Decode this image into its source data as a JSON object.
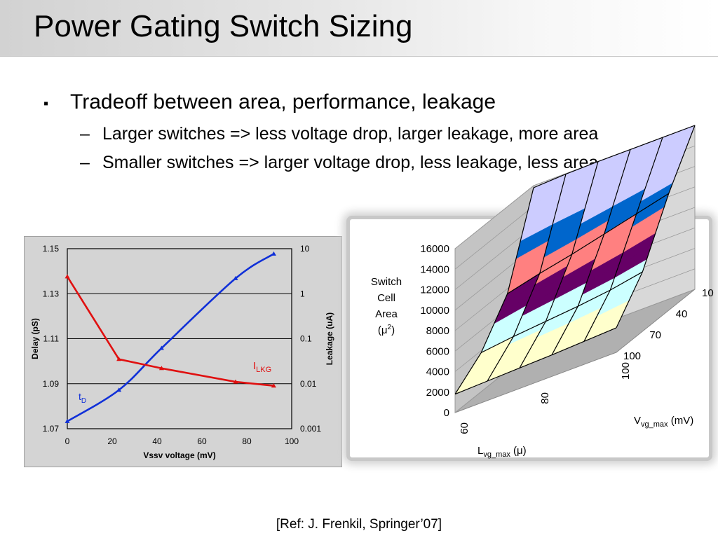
{
  "slide": {
    "title": "Power Gating Switch Sizing",
    "bullet_marker": "▪",
    "bullet": "Tradeoff between area, performance, leakage",
    "dash": "–",
    "sub_bullets": [
      "Larger switches => less voltage drop, larger leakage, more area",
      "Smaller switches => larger voltage drop, less leakage, less area"
    ],
    "reference": "[Ref: J. Frenkil, Springer’07]"
  },
  "chart_data": [
    {
      "type": "line",
      "xlabel": "Vssv voltage (mV)",
      "ylabel": "Delay (pS)",
      "y2label": "Leakage (uA)",
      "xlim": [
        0,
        100
      ],
      "xticks": [
        "0",
        "20",
        "40",
        "60",
        "80",
        "100"
      ],
      "ylim": [
        1.07,
        1.15
      ],
      "yticks": [
        "1.07",
        "1.09",
        "1.11",
        "1.13",
        "1.15"
      ],
      "y2lim": [
        0.001,
        10
      ],
      "y2scale": "log",
      "y2ticks": [
        "0.001",
        "0.01",
        "0.1",
        "1",
        "10"
      ],
      "grid": true,
      "series": [
        {
          "name": "tD",
          "label_main": "t",
          "label_sub": "D",
          "axis": "left",
          "color": "#1030d8",
          "x": [
            0,
            23,
            42,
            75,
            92
          ],
          "y": [
            1.0733,
            1.0872,
            1.1058,
            1.1368,
            1.1477
          ]
        },
        {
          "name": "ILKG",
          "label_main": "I",
          "label_sub": "LKG",
          "axis": "right",
          "color": "#e01010",
          "x": [
            0,
            23,
            42,
            75,
            92
          ],
          "y": [
            2.4,
            0.035,
            0.022,
            0.011,
            0.009
          ]
        }
      ]
    },
    {
      "type": "surface",
      "zlabel_lines": [
        "Switch",
        "Cell",
        "Area",
        "(μ"
      ],
      "zlabel_sup": "2",
      "zlabel_end": ")",
      "xlabel": {
        "main": "L",
        "sub": "vg_max",
        "unit": "(μ)"
      },
      "ylabel": {
        "main": "V",
        "sub": "vg_max",
        "unit": "(mV)"
      },
      "xticks": [
        "60",
        "80",
        "100"
      ],
      "yticks": [
        "10",
        "40",
        "70",
        "100"
      ],
      "zlim": [
        0,
        16000
      ],
      "zticks": [
        "0",
        "2000",
        "4000",
        "6000",
        "8000",
        "10000",
        "12000",
        "14000",
        "16000"
      ],
      "band_colors": [
        "#993366",
        "#ffffcc",
        "#ccffff",
        "#660066",
        "#ff8080",
        "#0066cc",
        "#ccccff"
      ],
      "surface_rows": [
        {
          "v": 100,
          "values": [
            1800,
            1900,
            2000,
            2100,
            2250,
            2400
          ]
        },
        {
          "v": 70,
          "values": [
            3800,
            4200,
            4500,
            4800,
            5200,
            5800
          ]
        },
        {
          "v": 40,
          "values": [
            7500,
            8300,
            9000,
            9800,
            10600,
            11400
          ]
        },
        {
          "v": 10,
          "values": [
            15800,
            15950,
            16000,
            16000,
            16000,
            16000
          ]
        }
      ]
    }
  ]
}
